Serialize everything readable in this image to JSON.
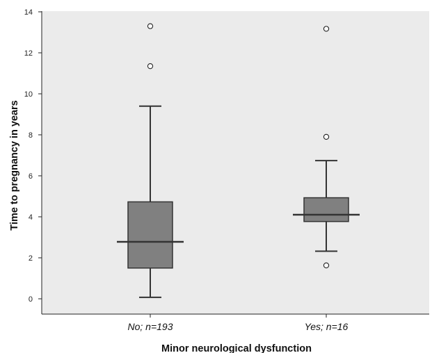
{
  "chart_data": {
    "type": "boxplot",
    "title": "",
    "xlabel": "Minor neurological dysfunction",
    "ylabel": "Time to pregnancy in years",
    "ylim": [
      0,
      14
    ],
    "yticks": [
      0,
      2,
      4,
      6,
      8,
      10,
      12,
      14
    ],
    "grid": false,
    "categories": [
      "No; n=193",
      "Yes; n=16"
    ],
    "boxes": [
      {
        "category": "No; n=193",
        "whisker_low": 0.07,
        "q1": 1.5,
        "median": 2.78,
        "q3": 4.73,
        "whisker_high": 9.4,
        "outliers": [
          11.35,
          13.3
        ]
      },
      {
        "category": "Yes; n=16",
        "whisker_low": 2.32,
        "q1": 3.77,
        "median": 4.1,
        "q3": 4.93,
        "whisker_high": 6.74,
        "outliers": [
          1.63,
          7.9,
          13.17
        ]
      }
    ],
    "colors": {
      "plot_background": "#ebebeb",
      "box_fill": "#808080",
      "line": "#333333",
      "outlier_fill": "#ffffff"
    }
  }
}
